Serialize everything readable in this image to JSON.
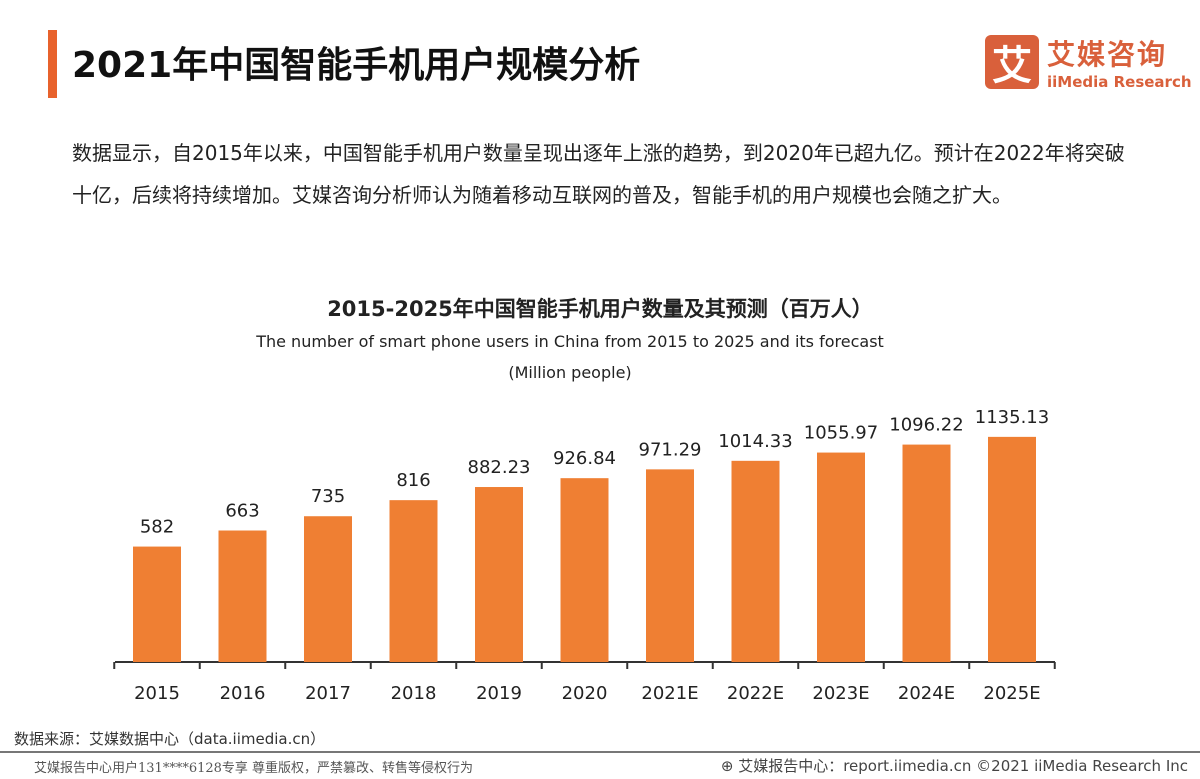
{
  "header": {
    "title": "2021年中国智能手机用户规模分析",
    "logo_mark": "艾",
    "logo_cn": "艾媒咨询",
    "logo_en": "iiMedia Research",
    "accent": "#e8622c"
  },
  "description": "数据显示，自2015年以来，中国智能手机用户数量呈现出逐年上涨的趋势，到2020年已超九亿。预计在2022年将突破十亿，后续将持续增加。艾媒咨询分析师认为随着移动互联网的普及，智能手机的用户规模也会随之扩大。",
  "chart_data": {
    "type": "bar",
    "title": "2015-2025年中国智能手机用户数量及其预测（百万人）",
    "subtitle": "The number of smart phone users in China from 2015 to 2025 and its forecast",
    "subtitle2": "(Million people)",
    "categories": [
      "2015",
      "2016",
      "2017",
      "2018",
      "2019",
      "2020",
      "2021E",
      "2022E",
      "2023E",
      "2024E",
      "2025E"
    ],
    "values": [
      582,
      663,
      735,
      816,
      882.23,
      926.84,
      971.29,
      1014.33,
      1055.97,
      1096.22,
      1135.13
    ],
    "labels": [
      "582",
      "663",
      "735",
      "816",
      "882.23",
      "926.84",
      "971.29",
      "1014.33",
      "1055.97",
      "1096.22",
      "1135.13"
    ],
    "ylim": [
      0,
      1200
    ],
    "bar_color": "#ef7f33",
    "grid": false
  },
  "footer": {
    "source": "数据来源：艾媒数据中心（data.iimedia.cn）",
    "license": "艾媒报告中心用户131****6128专享 尊重版权，严禁篡改、转售等侵权行为",
    "report": "艾媒报告中心：report.iimedia.cn ©2021 iiMedia Research Inc"
  }
}
